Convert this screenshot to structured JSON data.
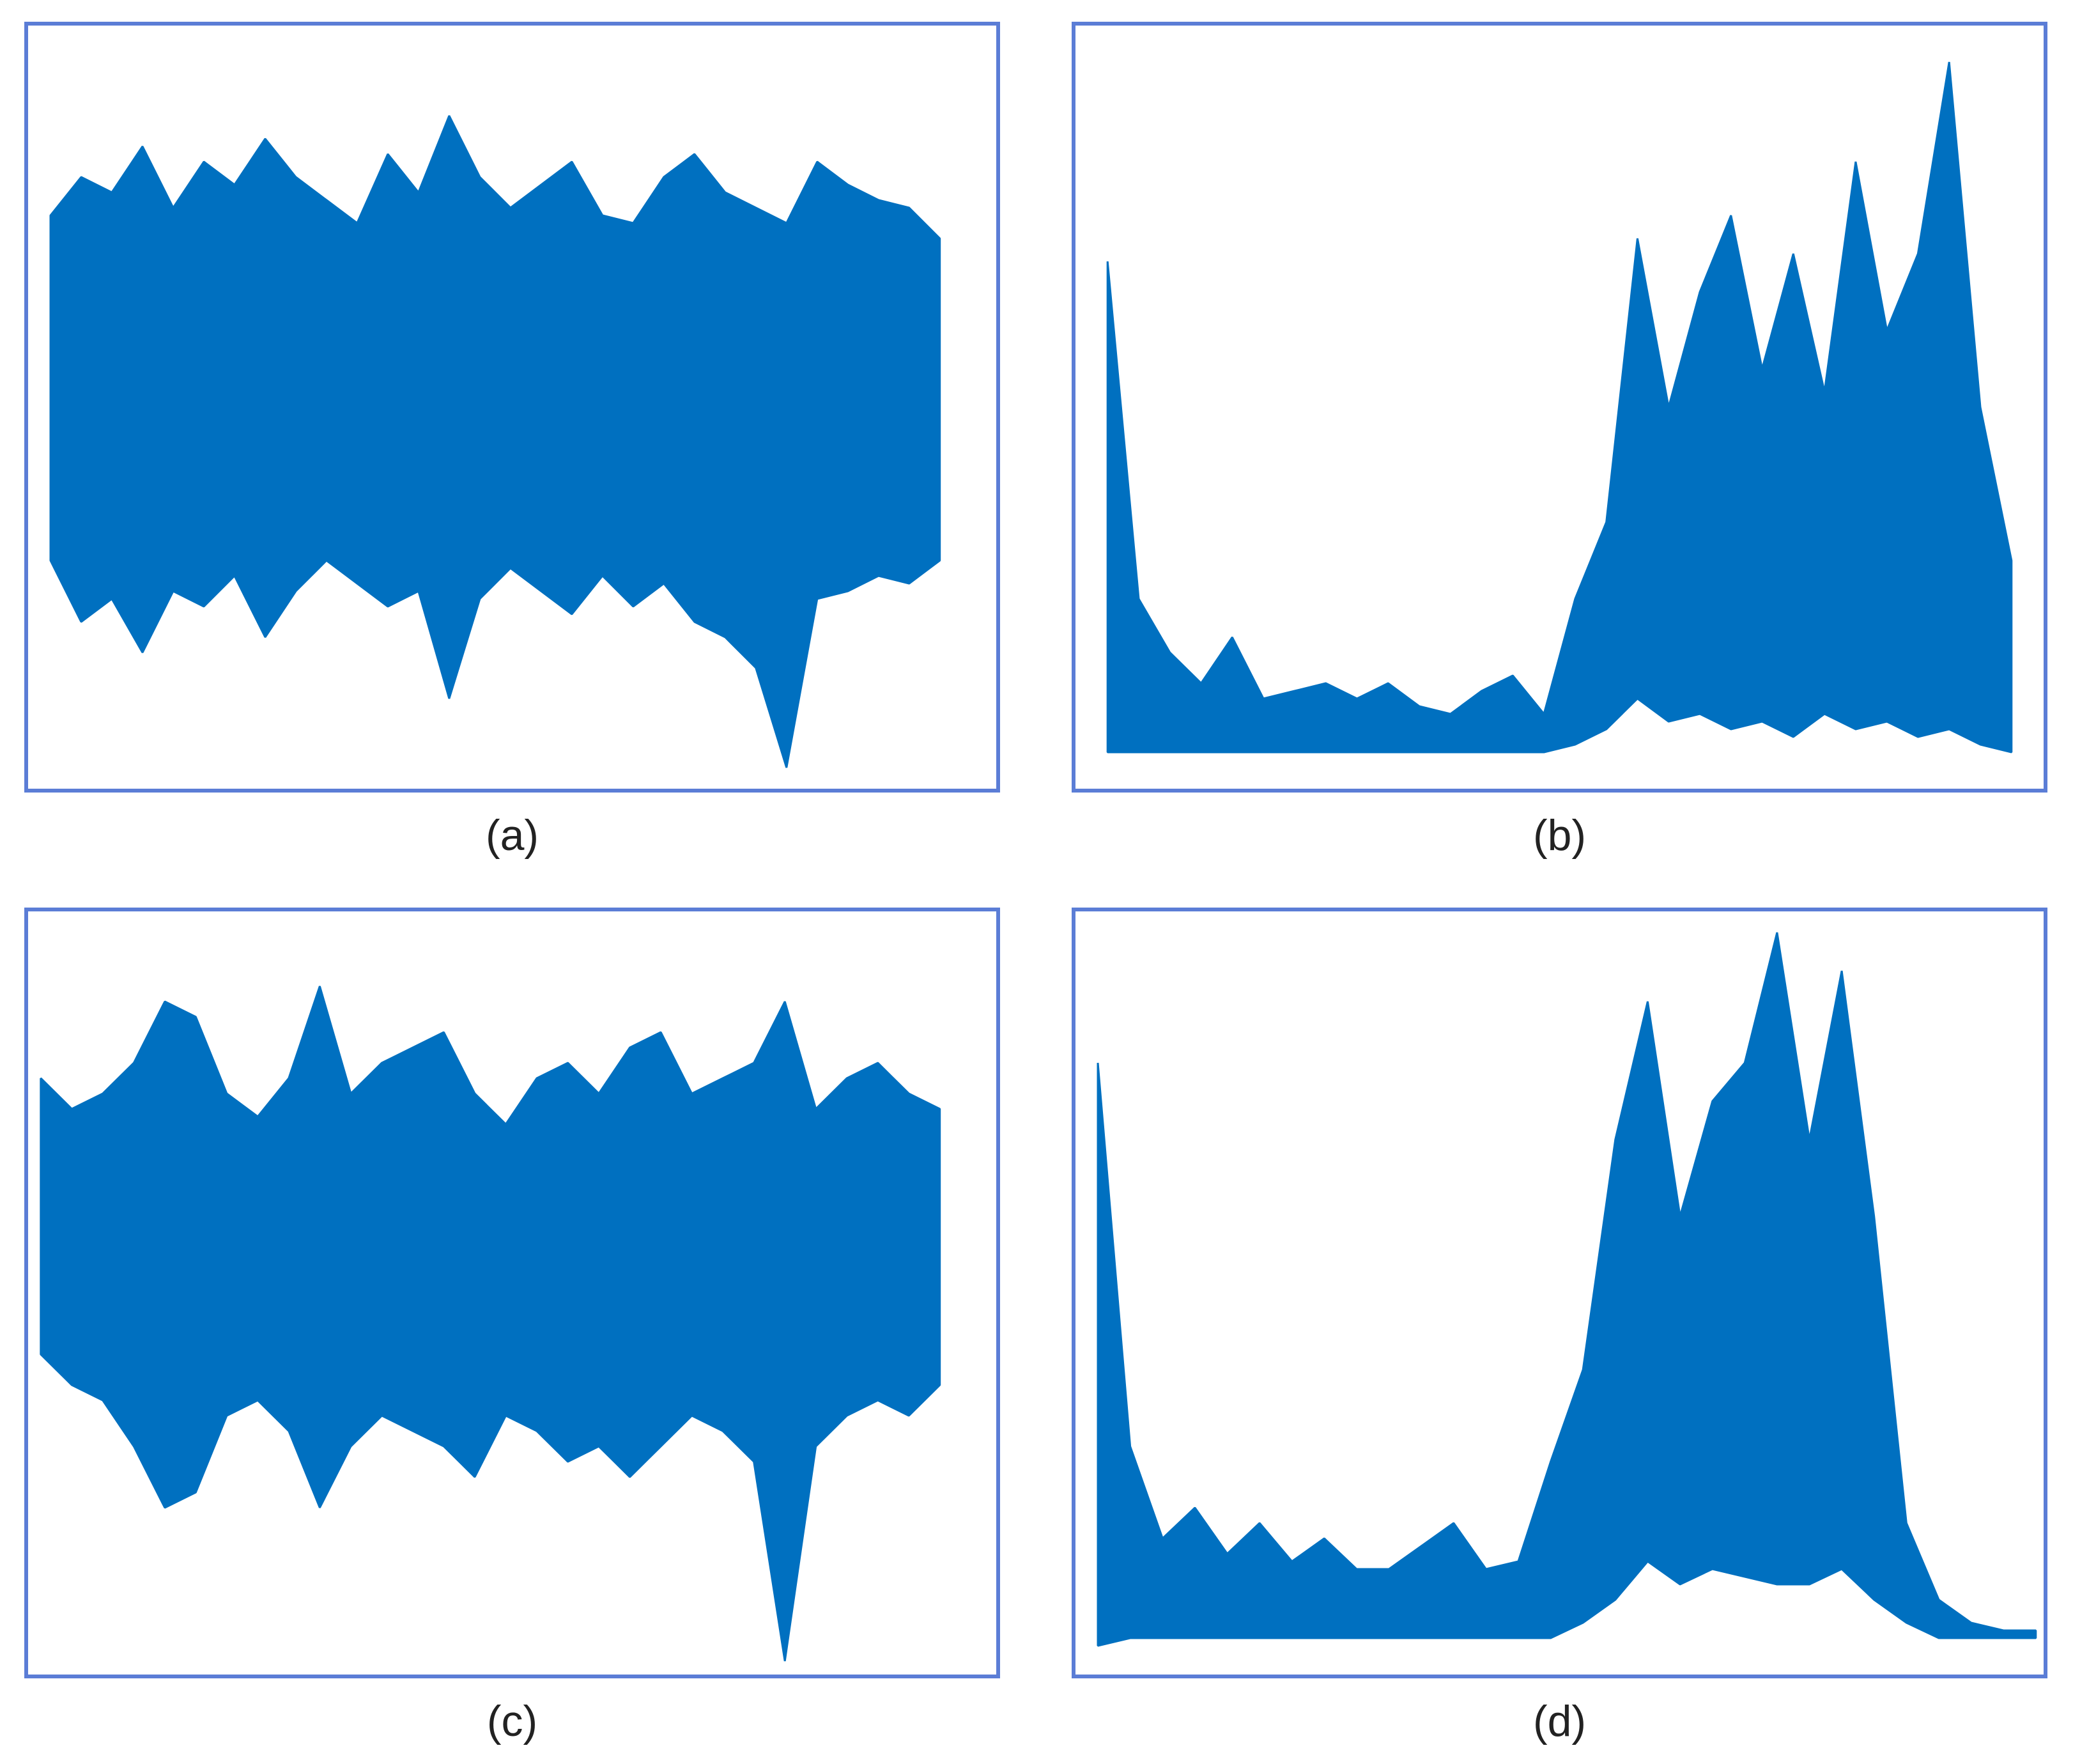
{
  "chart_data": [
    {
      "type": "band",
      "title": "(a)",
      "ylim": [
        0,
        100
      ],
      "color": "#0070c0",
      "series": [
        {
          "color": "#0070c0",
          "values": [
            75,
            80,
            78,
            84,
            76,
            82,
            79,
            85,
            80,
            77,
            74,
            83,
            78,
            88,
            80,
            76,
            79,
            82,
            75,
            74,
            80,
            83,
            78,
            76,
            74,
            82,
            79,
            77,
            76,
            72
          ]
        },
        {
          "color": "#0070c0",
          "values": [
            30,
            22,
            25,
            18,
            26,
            24,
            28,
            20,
            26,
            30,
            27,
            24,
            26,
            12,
            25,
            29,
            26,
            23,
            28,
            24,
            27,
            22,
            20,
            16,
            3,
            25,
            26,
            28,
            27,
            30
          ]
        }
      ]
    },
    {
      "type": "band",
      "title": "(b)",
      "ylim": [
        0,
        100
      ],
      "color": "#0070c0",
      "series": [
        {
          "color": "#0070c0",
          "values": [
            69,
            25,
            18,
            14,
            20,
            12,
            13,
            14,
            12,
            14,
            11,
            10,
            13,
            15,
            10,
            25,
            35,
            72,
            50,
            65,
            75,
            55,
            70,
            52,
            82,
            60,
            70,
            95,
            50,
            30
          ]
        },
        {
          "color": "#0070c0",
          "values": [
            5,
            5,
            5,
            5,
            5,
            5,
            5,
            5,
            5,
            5,
            5,
            5,
            5,
            5,
            5,
            6,
            8,
            12,
            9,
            10,
            8,
            9,
            7,
            10,
            8,
            9,
            7,
            8,
            6,
            5
          ]
        }
      ]
    },
    {
      "type": "band",
      "title": "(c)",
      "ylim": [
        0,
        100
      ],
      "color": "#0070c0",
      "series": [
        {
          "color": "#0070c0",
          "values": [
            78,
            74,
            76,
            80,
            88,
            86,
            76,
            73,
            78,
            90,
            76,
            80,
            82,
            84,
            76,
            72,
            78,
            80,
            76,
            82,
            84,
            76,
            78,
            80,
            88,
            74,
            78,
            80,
            76,
            74
          ]
        },
        {
          "color": "#0070c0",
          "values": [
            42,
            38,
            36,
            30,
            22,
            24,
            34,
            36,
            32,
            22,
            30,
            34,
            32,
            30,
            26,
            34,
            32,
            28,
            30,
            26,
            30,
            34,
            32,
            28,
            2,
            30,
            34,
            36,
            34,
            38
          ]
        }
      ]
    },
    {
      "type": "band",
      "title": "(d)",
      "ylim": [
        0,
        100
      ],
      "color": "#0070c0",
      "series": [
        {
          "color": "#0070c0",
          "values": [
            80,
            30,
            18,
            22,
            16,
            20,
            15,
            18,
            14,
            14,
            17,
            20,
            14,
            15,
            28,
            40,
            70,
            88,
            60,
            75,
            80,
            97,
            70,
            92,
            60,
            20,
            10,
            7,
            6,
            6
          ]
        },
        {
          "color": "#0070c0",
          "values": [
            4,
            5,
            5,
            5,
            5,
            5,
            5,
            5,
            5,
            5,
            5,
            5,
            5,
            5,
            5,
            7,
            10,
            15,
            12,
            14,
            13,
            12,
            12,
            14,
            10,
            7,
            5,
            5,
            5,
            5
          ]
        }
      ]
    }
  ]
}
